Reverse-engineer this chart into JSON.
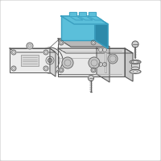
{
  "bg_color": "#ffffff",
  "border_color": "#cccccc",
  "line_color": "#999999",
  "dark_line": "#555555",
  "mid_line": "#777777",
  "blue_fill": "#5bbfda",
  "blue_stroke": "#3a9fc0",
  "blue_dark": "#2d8aaa",
  "gray_fill": "#e8e8e8",
  "gray_mid": "#d0d0d0",
  "gray_dark": "#b8b8b8",
  "fig_size": [
    2.0,
    2.0
  ],
  "dpi": 100
}
